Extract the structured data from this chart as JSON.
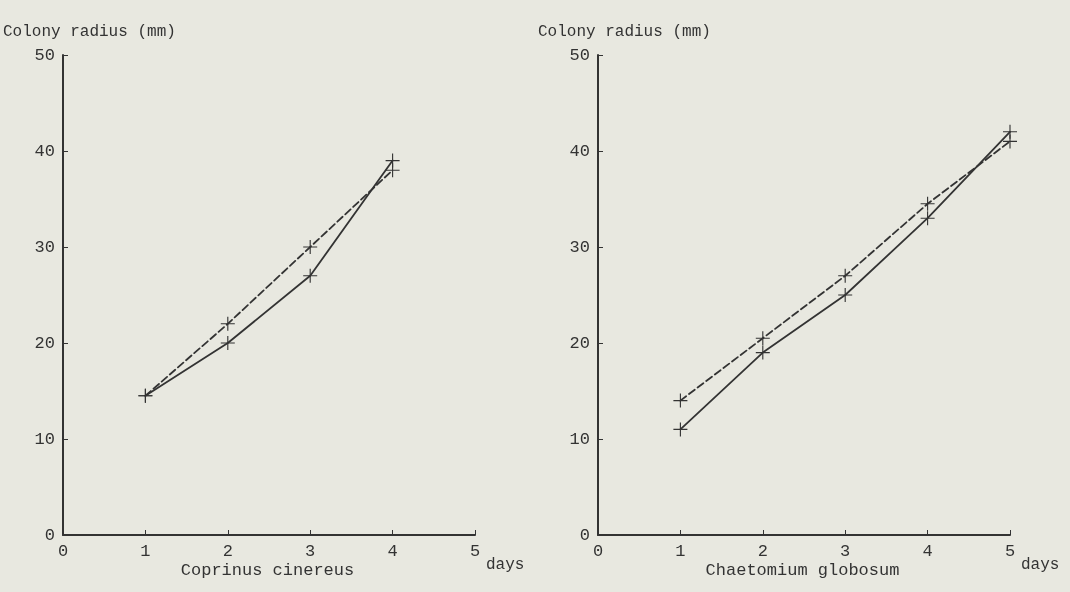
{
  "chart_data": [
    {
      "type": "line",
      "title": "Coprinus cinereus",
      "xlabel": "days",
      "ylabel": "Colony radius (mm)",
      "xlim": [
        0,
        5
      ],
      "xticks": [
        0,
        1,
        2,
        3,
        4,
        5
      ],
      "ylim": [
        0,
        50
      ],
      "yticks": [
        0,
        10,
        20,
        30,
        40,
        50
      ],
      "grid": false,
      "marker": "cross",
      "series": [
        {
          "color": "#333333",
          "line_style": "solid",
          "x": [
            1,
            2,
            3,
            4
          ],
          "values": [
            14.5,
            20,
            27,
            39
          ]
        },
        {
          "color": "#333333",
          "line_style": "dashed",
          "x": [
            1,
            2,
            3,
            4
          ],
          "values": [
            14.5,
            22,
            30,
            38
          ]
        }
      ]
    },
    {
      "type": "line",
      "title": "Chaetomium globosum",
      "xlabel": "days",
      "ylabel": "Colony radius (mm)",
      "xlim": [
        0,
        5
      ],
      "xticks": [
        0,
        1,
        2,
        3,
        4,
        5
      ],
      "ylim": [
        0,
        50
      ],
      "yticks": [
        0,
        10,
        20,
        30,
        40,
        50
      ],
      "grid": false,
      "marker": "cross",
      "series": [
        {
          "color": "#333333",
          "line_style": "solid",
          "x": [
            1,
            2,
            3,
            4,
            5
          ],
          "values": [
            11,
            19,
            25,
            33,
            42
          ]
        },
        {
          "color": "#333333",
          "line_style": "dashed",
          "x": [
            1,
            2,
            3,
            4,
            5
          ],
          "values": [
            14,
            20.5,
            27,
            34.5,
            41
          ]
        }
      ]
    }
  ]
}
